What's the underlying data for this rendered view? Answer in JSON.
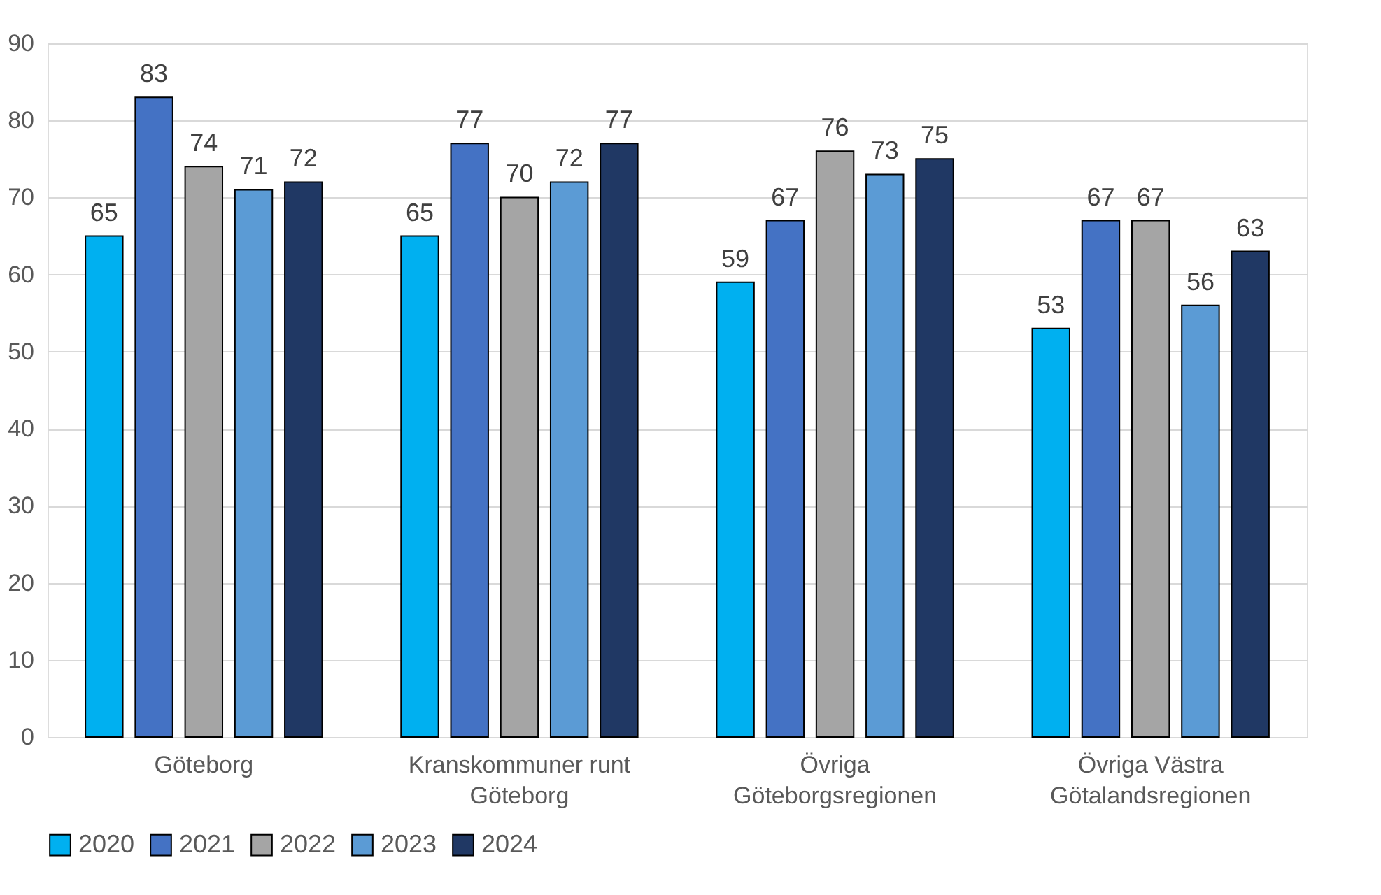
{
  "chart_data": {
    "type": "bar",
    "categories": [
      "Göteborg",
      "Kranskommuner runt\nGöteborg",
      "Övriga\nGöteborgsregionen",
      "Övriga Västra\nGötalandsregionen"
    ],
    "series": [
      {
        "name": "2020",
        "color": "#00b0f0",
        "values": [
          65,
          65,
          59,
          53
        ]
      },
      {
        "name": "2021",
        "color": "#4472c4",
        "values": [
          83,
          77,
          67,
          67
        ]
      },
      {
        "name": "2022",
        "color": "#a5a5a5",
        "values": [
          74,
          70,
          76,
          67
        ]
      },
      {
        "name": "2023",
        "color": "#5b9bd5",
        "values": [
          71,
          72,
          73,
          56
        ]
      },
      {
        "name": "2024",
        "color": "#203864",
        "values": [
          72,
          77,
          75,
          63
        ]
      }
    ],
    "ylim": [
      0,
      90
    ],
    "yticks": [
      0,
      10,
      20,
      30,
      40,
      50,
      60,
      70,
      80,
      90
    ],
    "grid": "y",
    "legend": "bottom",
    "data_labels": true
  }
}
